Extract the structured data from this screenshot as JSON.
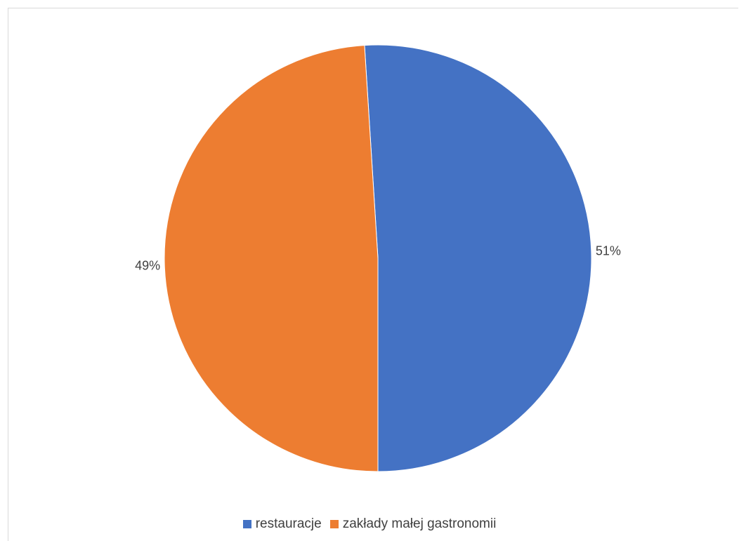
{
  "chart_data": {
    "type": "pie",
    "title": "",
    "categories": [
      "restauracje",
      "zakłady małej gastronomii"
    ],
    "values": [
      51,
      49
    ],
    "data_labels": [
      "51%",
      "49%"
    ],
    "colors": [
      "#4472C4",
      "#ED7D31"
    ],
    "legend_position": "bottom",
    "start_angle_deg": -93.6,
    "direction": "clockwise"
  }
}
